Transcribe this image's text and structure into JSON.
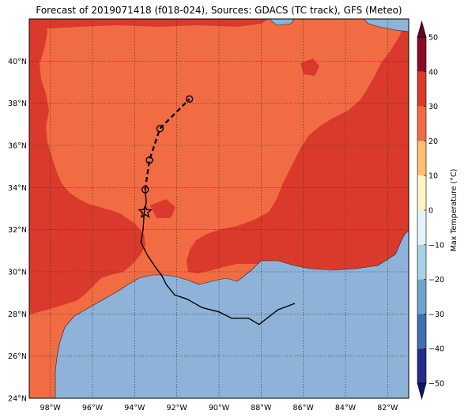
{
  "title": "Forecast of 2019071418 (f018-024), Sources: GDACS (TC track), GFS (Meteo)",
  "map": {
    "lon_range": [
      -99,
      -81
    ],
    "lat_range": [
      24,
      42
    ],
    "lon_ticks": [
      -98,
      -96,
      -94,
      -92,
      -90,
      -88,
      -86,
      -84,
      -82
    ],
    "lon_tick_labels": [
      "98°W",
      "96°W",
      "94°W",
      "92°W",
      "90°W",
      "88°W",
      "86°W",
      "84°W",
      "82°W"
    ],
    "lat_ticks": [
      24,
      26,
      28,
      30,
      32,
      34,
      36,
      38,
      40
    ],
    "lat_tick_labels": [
      "24°N",
      "26°N",
      "28°N",
      "30°N",
      "32°N",
      "34°N",
      "36°N",
      "38°N",
      "40°N"
    ],
    "grid": true,
    "colors": {
      "ocean": "#8fb3d8",
      "temp_30_40": "#d93a2b",
      "temp_20_30": "#f26c43",
      "track": "#000000"
    }
  },
  "colorbar": {
    "label": "Max Temperature (°C)",
    "ticks": [
      50,
      40,
      30,
      20,
      10,
      0,
      -10,
      -20,
      -30,
      -40,
      -50
    ],
    "tick_labels": [
      "50",
      "40",
      "30",
      "20",
      "10",
      "0",
      "−10",
      "−20",
      "−30",
      "−40",
      "−50"
    ],
    "bands": [
      {
        "from": 40,
        "to": 50,
        "color": "#8c0a26"
      },
      {
        "from": 30,
        "to": 40,
        "color": "#d93a2b"
      },
      {
        "from": 20,
        "to": 30,
        "color": "#f26c43"
      },
      {
        "from": 10,
        "to": 20,
        "color": "#fdbf72"
      },
      {
        "from": 0,
        "to": 10,
        "color": "#fff5c4"
      },
      {
        "from": -10,
        "to": 0,
        "color": "#e4f3f7"
      },
      {
        "from": -20,
        "to": -10,
        "color": "#a8d3e6"
      },
      {
        "from": -30,
        "to": -20,
        "color": "#6ea3cc"
      },
      {
        "from": -40,
        "to": -30,
        "color": "#3f6fb0"
      },
      {
        "from": -50,
        "to": -40,
        "color": "#262a8a"
      }
    ],
    "over_color": "#6a0022",
    "under_color": "#0f1466"
  },
  "track": {
    "observed": [
      [
        -86.4,
        28.5
      ],
      [
        -87.2,
        28.2
      ],
      [
        -88.1,
        27.5
      ],
      [
        -88.6,
        27.8
      ],
      [
        -89.4,
        27.8
      ],
      [
        -90.0,
        28.1
      ],
      [
        -90.8,
        28.3
      ],
      [
        -91.5,
        28.7
      ],
      [
        -92.1,
        28.9
      ],
      [
        -92.5,
        29.4
      ],
      [
        -92.7,
        29.8
      ],
      [
        -93.0,
        30.2
      ],
      [
        -93.4,
        30.8
      ],
      [
        -93.7,
        31.4
      ],
      [
        -93.6,
        32.0
      ],
      [
        -93.55,
        32.8
      ],
      [
        -93.45,
        33.3
      ],
      [
        -93.5,
        33.9
      ]
    ],
    "current_position": [
      -93.5,
      32.85
    ],
    "forecast": [
      [
        -93.5,
        33.9
      ],
      [
        -93.4,
        34.6
      ],
      [
        -93.3,
        35.3
      ],
      [
        -92.8,
        36.8
      ],
      [
        -91.4,
        38.2
      ]
    ],
    "forecast_points": [
      [
        -93.5,
        33.9
      ],
      [
        -93.3,
        35.3
      ],
      [
        -92.8,
        36.8
      ],
      [
        -91.4,
        38.2
      ]
    ]
  }
}
